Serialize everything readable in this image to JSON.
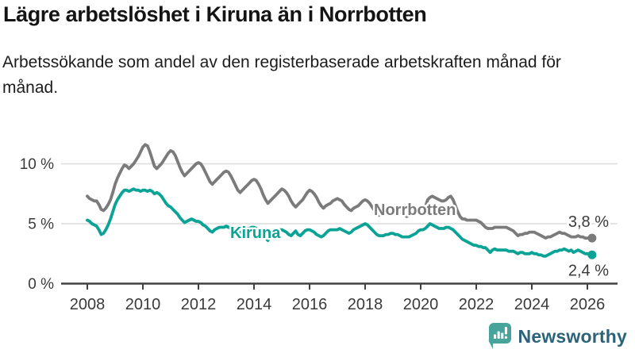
{
  "header": {
    "title": "Lägre arbetslöshet i Kiruna än i Norrbotten",
    "subtitle": "Arbetssökande som andel av den registerbaserade arbetskraften månad för månad."
  },
  "footer": {
    "brand": "Newsworthy",
    "brand_color": "#2b6379",
    "icon_color": "#46a49b"
  },
  "colors": {
    "norrbotten": "#7b7b7b",
    "kiruna": "#0ba396",
    "gridline": "#dcdcdc",
    "axis": "#404040",
    "axis_text": "#3a3a3a"
  },
  "chart_data": {
    "type": "line",
    "title": "Lägre arbetslöshet i Kiruna än i Norrbotten",
    "subtitle": "Arbetssökande som andel av den registerbaserade arbetskraften månad för månad.",
    "unit": "percent",
    "frequency": "monthly",
    "x_start": "2008-01",
    "x_end": "2026-03",
    "x_tick_labels": [
      "2008",
      "2010",
      "2012",
      "2014",
      "2016",
      "2018",
      "2020",
      "2022",
      "2024",
      "2026"
    ],
    "y_ticks": [
      {
        "value": 0,
        "label": "0 %"
      },
      {
        "value": 5,
        "label": "5 %"
      },
      {
        "value": 10,
        "label": "10 %"
      }
    ],
    "ylim": [
      0,
      12.5
    ],
    "grid": "horizontal-only",
    "legend_position": "inline-labels",
    "series": [
      {
        "name": "Norrbotten",
        "end_label": "3,8 %",
        "last_value": 3.8,
        "values": [
          7.3,
          7.1,
          7.0,
          6.9,
          6.9,
          6.6,
          6.2,
          6.1,
          6.3,
          6.6,
          7.0,
          7.6,
          8.3,
          8.8,
          9.2,
          9.6,
          9.9,
          9.8,
          9.6,
          9.8,
          10.0,
          10.3,
          10.6,
          11.0,
          11.4,
          11.6,
          11.5,
          11.0,
          10.4,
          9.8,
          9.6,
          9.8,
          10.0,
          10.3,
          10.6,
          10.9,
          11.1,
          11.0,
          10.7,
          10.2,
          9.7,
          9.3,
          9.0,
          9.2,
          9.4,
          9.6,
          9.8,
          10.0,
          10.1,
          10.0,
          9.7,
          9.3,
          8.9,
          8.5,
          8.3,
          8.5,
          8.7,
          8.9,
          9.1,
          9.3,
          9.4,
          9.3,
          9.0,
          8.6,
          8.2,
          7.8,
          7.6,
          7.8,
          8.0,
          8.2,
          8.4,
          8.6,
          8.7,
          8.6,
          8.3,
          7.9,
          7.4,
          7.0,
          6.7,
          6.9,
          7.1,
          7.3,
          7.5,
          7.7,
          7.9,
          7.8,
          7.6,
          7.3,
          6.9,
          6.6,
          6.4,
          6.6,
          6.8,
          7.0,
          7.3,
          7.6,
          7.8,
          7.7,
          7.5,
          7.2,
          6.8,
          6.5,
          6.3,
          6.5,
          6.6,
          6.7,
          6.9,
          7.0,
          7.1,
          7.0,
          6.9,
          6.6,
          6.4,
          6.2,
          6.1,
          6.3,
          6.4,
          6.5,
          6.7,
          6.9,
          7.0,
          6.9,
          6.7,
          6.4,
          6.1,
          5.8,
          5.7,
          5.8,
          5.9,
          6.1,
          6.2,
          6.3,
          6.4,
          6.3,
          6.2,
          6.0,
          5.8,
          5.7,
          5.6,
          5.7,
          5.9,
          6.0,
          6.1,
          6.2,
          6.3,
          6.2,
          6.4,
          7.0,
          7.2,
          7.3,
          7.2,
          7.1,
          7.0,
          6.9,
          6.9,
          7.0,
          7.2,
          7.3,
          7.0,
          6.5,
          6.0,
          5.6,
          5.4,
          5.4,
          5.3,
          5.3,
          5.3,
          5.3,
          5.3,
          5.2,
          5.1,
          4.9,
          4.7,
          4.6,
          4.6,
          4.6,
          4.7,
          4.7,
          4.7,
          4.7,
          4.7,
          4.7,
          4.6,
          4.5,
          4.4,
          4.2,
          4.0,
          4.1,
          4.1,
          4.2,
          4.2,
          4.3,
          4.3,
          4.3,
          4.2,
          4.1,
          4.0,
          3.9,
          3.8,
          3.9,
          3.9,
          4.0,
          4.1,
          4.2,
          4.3,
          4.2,
          4.2,
          4.1,
          4.0,
          3.9,
          3.9,
          3.9,
          4.0,
          3.9,
          3.9,
          3.8,
          3.8,
          3.8,
          3.8
        ]
      },
      {
        "name": "Kiruna",
        "end_label": "2,4 %",
        "last_value": 2.4,
        "values": [
          5.3,
          5.2,
          5.0,
          4.9,
          4.8,
          4.5,
          4.1,
          4.2,
          4.5,
          4.9,
          5.4,
          6.0,
          6.6,
          7.0,
          7.3,
          7.6,
          7.8,
          7.8,
          7.7,
          7.8,
          7.9,
          7.8,
          7.8,
          7.7,
          7.8,
          7.8,
          7.7,
          7.8,
          7.7,
          7.5,
          7.6,
          7.5,
          7.3,
          7.0,
          6.7,
          6.5,
          6.4,
          6.2,
          6.0,
          5.8,
          5.5,
          5.3,
          5.1,
          5.2,
          5.3,
          5.4,
          5.3,
          5.2,
          5.2,
          5.1,
          4.9,
          4.8,
          4.6,
          4.4,
          4.3,
          4.5,
          4.6,
          4.7,
          4.7,
          4.7,
          4.8,
          4.7,
          4.6,
          4.5,
          4.4,
          4.3,
          4.2,
          4.4,
          4.5,
          4.6,
          4.6,
          4.7,
          4.7,
          4.6,
          4.5,
          4.3,
          4.1,
          3.8,
          3.6,
          3.9,
          4.1,
          4.3,
          4.4,
          4.5,
          4.5,
          4.4,
          4.3,
          4.1,
          4.0,
          4.2,
          4.4,
          4.1,
          4.0,
          4.2,
          4.4,
          4.5,
          4.5,
          4.4,
          4.3,
          4.1,
          4.0,
          3.9,
          4.0,
          4.2,
          4.4,
          4.5,
          4.5,
          4.5,
          4.5,
          4.6,
          4.5,
          4.4,
          4.3,
          4.2,
          4.3,
          4.5,
          4.6,
          4.7,
          4.8,
          4.9,
          5.0,
          4.9,
          4.7,
          4.5,
          4.3,
          4.1,
          4.0,
          4.0,
          4.0,
          4.1,
          4.1,
          4.2,
          4.2,
          4.1,
          4.1,
          4.0,
          3.9,
          3.9,
          3.9,
          3.9,
          4.0,
          4.1,
          4.2,
          4.4,
          4.5,
          4.5,
          4.6,
          4.8,
          5.0,
          4.9,
          4.8,
          4.7,
          4.6,
          4.6,
          4.6,
          4.7,
          4.7,
          4.6,
          4.5,
          4.3,
          4.1,
          3.9,
          3.7,
          3.6,
          3.5,
          3.4,
          3.3,
          3.2,
          3.2,
          3.1,
          3.1,
          3.0,
          3.0,
          2.8,
          2.6,
          2.8,
          2.9,
          2.8,
          2.8,
          2.8,
          2.8,
          2.8,
          2.7,
          2.7,
          2.7,
          2.6,
          2.5,
          2.6,
          2.6,
          2.5,
          2.5,
          2.5,
          2.6,
          2.5,
          2.5,
          2.4,
          2.4,
          2.3,
          2.3,
          2.4,
          2.5,
          2.6,
          2.7,
          2.7,
          2.8,
          2.8,
          2.9,
          2.8,
          2.7,
          2.8,
          2.6,
          2.7,
          2.8,
          2.7,
          2.6,
          2.5,
          2.5,
          2.4,
          2.4
        ]
      }
    ]
  }
}
